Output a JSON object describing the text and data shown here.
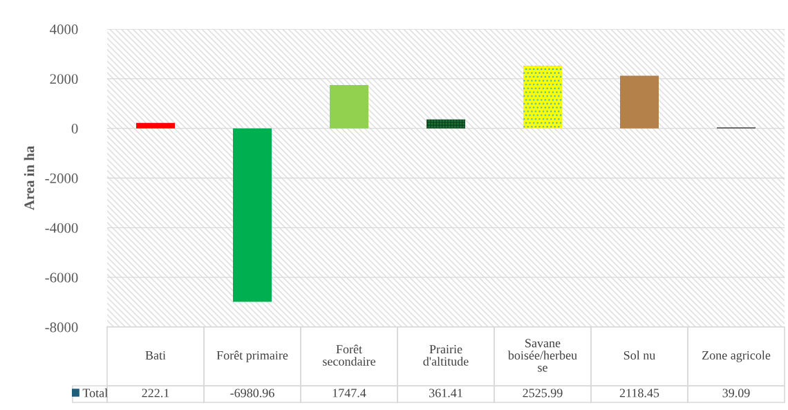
{
  "chart_data": {
    "type": "bar",
    "ylabel": "Area in ha",
    "categories": [
      "Bati",
      "Forêt primaire",
      "Forêt secondaire",
      "Prairie d'altitude",
      "Savane boisée/herbeuse",
      "Sol nu",
      "Zone agricole"
    ],
    "series": [
      {
        "name": "Total",
        "color": "#1f5f7a",
        "values": [
          222.1,
          -6980.96,
          1747.4,
          361.41,
          2525.99,
          2118.45,
          39.09
        ],
        "colors": [
          "#ff0000",
          "#00b050",
          "#92d050",
          "#1e7a3a",
          "#ffff00",
          "#b5814a",
          "#404040"
        ]
      }
    ],
    "ylim": [
      -8000,
      4000
    ],
    "yticks": [
      -8000,
      -6000,
      -4000,
      -2000,
      0,
      2000,
      4000
    ],
    "grid": "y",
    "data_labels": true,
    "legend": "bottom left"
  }
}
